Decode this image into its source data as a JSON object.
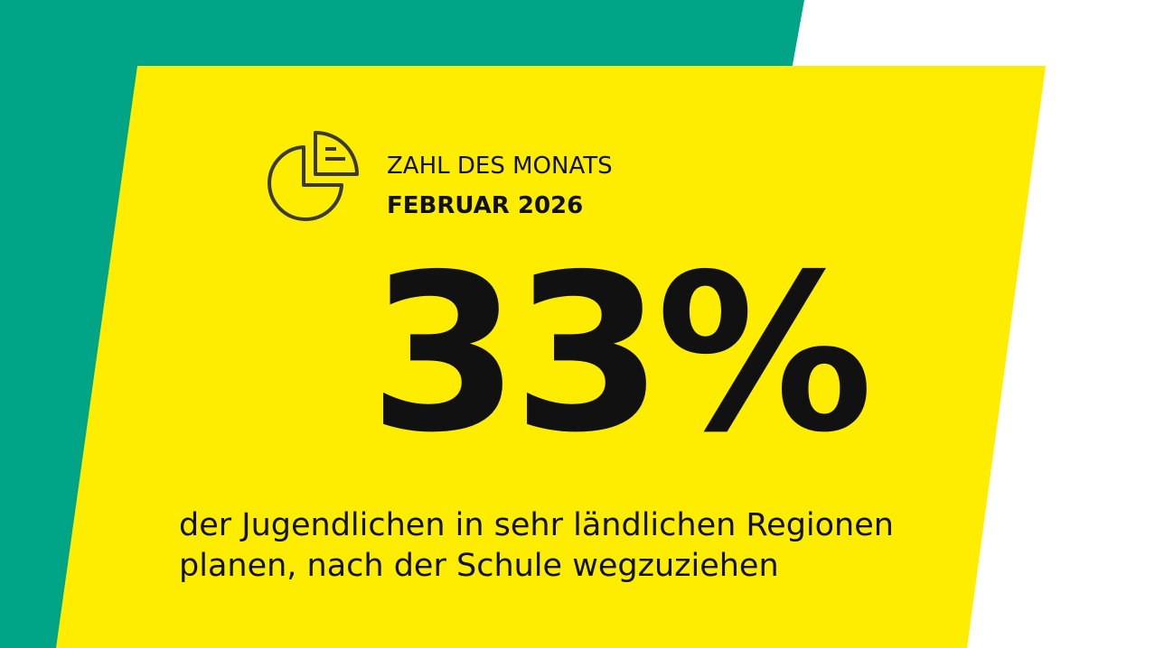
{
  "header": {
    "label": "ZAHL DES MONATS",
    "date": "FEBRUAR 2026"
  },
  "figure": {
    "value": "33%",
    "caption": [
      "der Jugendlichen in sehr ländlichen Regionen",
      "planen, nach der Schule wegzuziehen"
    ]
  }
}
